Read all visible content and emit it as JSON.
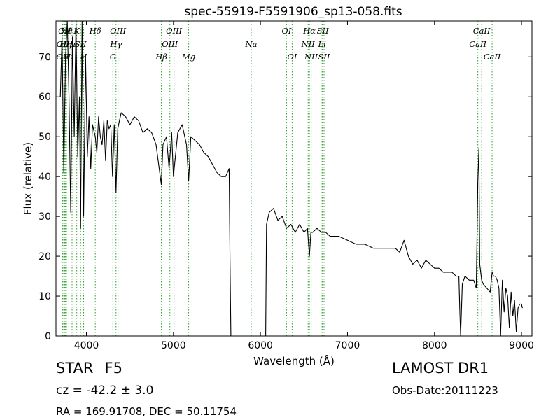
{
  "chart_data": {
    "type": "line",
    "title": "spec-55919-F5591906_sp13-058.fits",
    "xlabel": "Wavelength (Å)",
    "ylabel": "Flux (relative)",
    "xlim": [
      3650,
      9120
    ],
    "ylim": [
      0,
      79
    ],
    "xticks": [
      4000,
      5000,
      6000,
      7000,
      8000,
      9000
    ],
    "yticks": [
      0,
      10,
      20,
      30,
      40,
      50,
      60,
      70
    ],
    "grid": false,
    "line_color": "#000000",
    "marker_line_color": "#2ca02c",
    "series": [
      {
        "x": [
          3700,
          3720,
          3740,
          3760,
          3780,
          3800,
          3820,
          3840,
          3860,
          3880,
          3900,
          3920,
          3933,
          3950,
          3968,
          3990,
          4010,
          4030,
          4050,
          4070,
          4102,
          4120,
          4140,
          4160,
          4180,
          4200,
          4220,
          4240,
          4260,
          4280,
          4300,
          4320,
          4340,
          4360,
          4380,
          4400,
          4450,
          4500,
          4550,
          4600,
          4650,
          4700,
          4750,
          4800,
          4861,
          4880,
          4920,
          4950,
          4980,
          5000,
          5050,
          5100,
          5150,
          5175,
          5200,
          5250,
          5300,
          5350,
          5400,
          5450,
          5500,
          5550,
          5600,
          5640,
          5650,
          5660,
          5700,
          5800,
          5900,
          6000,
          6040,
          6060,
          6070,
          6100,
          6150,
          6200,
          6250,
          6300,
          6350,
          6400,
          6450,
          6500,
          6540,
          6563,
          6580,
          6600,
          6650,
          6700,
          6750,
          6800,
          6900,
          7000,
          7100,
          7200,
          7300,
          7400,
          7500,
          7550,
          7600,
          7650,
          7700,
          7750,
          7800,
          7850,
          7900,
          7950,
          8000,
          8050,
          8100,
          8150,
          8200,
          8250,
          8280,
          8290,
          8300,
          8320,
          8350,
          8400,
          8450,
          8480,
          8498,
          8510,
          8520,
          8542,
          8560,
          8600,
          8640,
          8662,
          8680,
          8700,
          8720,
          8740,
          8760,
          8780,
          8800,
          8820,
          8840,
          8860,
          8880,
          8900,
          8920,
          8940,
          8960,
          8980,
          9000,
          9010
        ],
        "y": [
          60,
          75,
          41,
          70,
          79,
          60,
          31,
          75,
          50,
          79,
          45,
          60,
          27,
          79,
          30,
          70,
          45,
          55,
          42,
          53,
          50,
          46,
          55,
          50,
          48,
          54,
          44,
          54,
          52,
          53,
          40,
          53,
          36,
          52,
          54,
          56,
          55,
          53,
          55,
          54,
          51,
          52,
          51,
          48,
          38,
          48,
          50,
          42,
          51,
          40,
          51,
          53,
          48,
          39,
          50,
          49,
          48,
          46,
          45,
          43,
          41,
          40,
          40,
          42,
          20,
          0,
          0,
          0,
          0,
          0,
          0,
          0,
          28,
          31,
          32,
          29,
          30,
          27,
          28,
          26,
          28,
          26,
          27,
          20,
          26,
          26,
          27,
          26,
          26,
          25,
          25,
          24,
          23,
          23,
          22,
          22,
          22,
          22,
          21,
          24,
          20,
          18,
          19,
          17,
          19,
          18,
          17,
          17,
          16,
          16,
          16,
          15,
          15,
          7,
          0,
          13,
          15,
          14,
          14,
          12,
          39,
          47,
          18,
          14,
          13,
          12,
          11,
          16,
          15,
          15,
          14,
          12,
          0,
          14,
          6,
          12,
          10,
          2,
          11,
          5,
          9,
          1,
          7,
          8,
          8,
          7
        ]
      }
    ],
    "line_markers": [
      {
        "wave": 3727,
        "label": "OII",
        "row": 2
      },
      {
        "wave": 3730,
        "label": "OII",
        "row": 1
      },
      {
        "wave": 3750,
        "label": "OII",
        "row": 0
      },
      {
        "wave": 3760,
        "label": "Hη",
        "row": 1
      },
      {
        "wave": 3771,
        "label": "Hθ",
        "row": 0
      },
      {
        "wave": 3798,
        "label": "Hι",
        "row": 2
      },
      {
        "wave": 3835,
        "label": "Hκ",
        "row": 1
      },
      {
        "wave": 3889,
        "label": "K",
        "row": 0
      },
      {
        "wave": 3933,
        "label": "SII",
        "row": 1
      },
      {
        "wave": 3968,
        "label": "H",
        "row": 2
      },
      {
        "wave": 4102,
        "label": "Hδ",
        "row": 0
      },
      {
        "wave": 4304,
        "label": "G",
        "row": 2
      },
      {
        "wave": 4340,
        "label": "Hγ",
        "row": 1
      },
      {
        "wave": 4363,
        "label": "OIII",
        "row": 0
      },
      {
        "wave": 4861,
        "label": "Hβ",
        "row": 2
      },
      {
        "wave": 4959,
        "label": "OIII",
        "row": 1
      },
      {
        "wave": 5007,
        "label": "OIII",
        "row": 0
      },
      {
        "wave": 5175,
        "label": "Mg",
        "row": 2
      },
      {
        "wave": 5894,
        "label": "Na",
        "row": 1
      },
      {
        "wave": 6300,
        "label": "OI",
        "row": 0
      },
      {
        "wave": 6364,
        "label": "OI",
        "row": 2
      },
      {
        "wave": 6548,
        "label": "NII",
        "row": 1
      },
      {
        "wave": 6563,
        "label": "Hα",
        "row": 0
      },
      {
        "wave": 6583,
        "label": "NII",
        "row": 2
      },
      {
        "wave": 6708,
        "label": "Li",
        "row": 1
      },
      {
        "wave": 6716,
        "label": "SII",
        "row": 0
      },
      {
        "wave": 6731,
        "label": "SII",
        "row": 2
      },
      {
        "wave": 8498,
        "label": "CaII",
        "row": 1
      },
      {
        "wave": 8542,
        "label": "CaII",
        "row": 0
      },
      {
        "wave": 8662,
        "label": "CaII",
        "row": 2
      }
    ]
  },
  "info": {
    "class": "STAR",
    "subclass": "F5",
    "cz": "cz = -42.2 ± 3.0",
    "radec": "RA = 169.91708, DEC = 50.11754",
    "survey": "LAMOST DR1",
    "obs_date": "Obs-Date:20111223"
  }
}
